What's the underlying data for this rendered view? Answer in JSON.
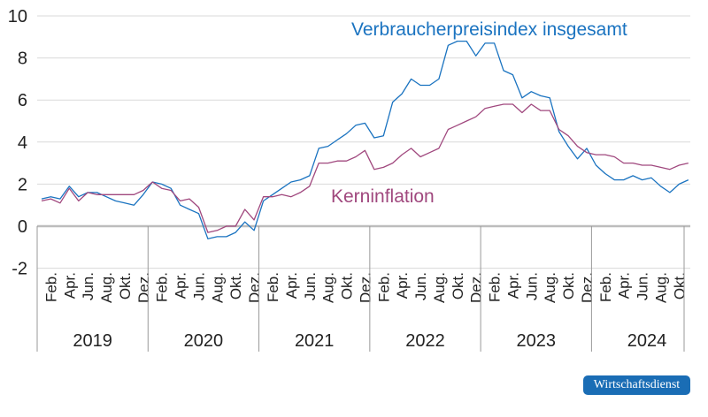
{
  "chart_data": {
    "type": "line",
    "ylim": [
      -2,
      10
    ],
    "yticks": [
      10,
      8,
      6,
      4,
      2,
      0,
      -2
    ],
    "grid": true,
    "years": [
      "2019",
      "2020",
      "2021",
      "2022",
      "2023",
      "2024"
    ],
    "month_labels": [
      "Feb.",
      "Apr.",
      "Jun.",
      "Aug.",
      "Okt.",
      "Dez."
    ],
    "x_start": "2019-01",
    "x_end": "2024-11",
    "series": [
      {
        "name": "Verbraucherpreisindex insgesamt",
        "color": "#1a73c0",
        "values": [
          1.3,
          1.4,
          1.3,
          1.9,
          1.4,
          1.6,
          1.6,
          1.4,
          1.2,
          1.1,
          1.0,
          1.5,
          2.1,
          2.0,
          1.8,
          1.0,
          0.8,
          0.6,
          -0.6,
          -0.5,
          -0.5,
          -0.3,
          0.2,
          -0.2,
          1.2,
          1.5,
          1.8,
          2.1,
          2.2,
          2.4,
          3.7,
          3.8,
          4.1,
          4.4,
          4.8,
          4.9,
          4.2,
          4.3,
          5.9,
          6.3,
          7.0,
          6.7,
          6.7,
          7.0,
          8.6,
          8.8,
          8.8,
          8.1,
          8.7,
          8.7,
          7.4,
          7.2,
          6.1,
          6.4,
          6.2,
          6.1,
          4.5,
          3.8,
          3.2,
          3.7,
          2.9,
          2.5,
          2.2,
          2.2,
          2.4,
          2.2,
          2.3,
          1.9,
          1.6,
          2.0,
          2.2
        ]
      },
      {
        "name": "Kerninflation",
        "color": "#a0487e",
        "values": [
          1.2,
          1.3,
          1.1,
          1.8,
          1.2,
          1.6,
          1.5,
          1.5,
          1.5,
          1.5,
          1.5,
          1.7,
          2.1,
          1.8,
          1.7,
          1.2,
          1.3,
          0.9,
          -0.3,
          -0.2,
          0.0,
          0.0,
          0.8,
          0.3,
          1.4,
          1.4,
          1.5,
          1.4,
          1.6,
          1.9,
          3.0,
          3.0,
          3.1,
          3.1,
          3.3,
          3.6,
          2.7,
          2.8,
          3.0,
          3.4,
          3.7,
          3.3,
          3.5,
          3.7,
          4.6,
          4.8,
          5.0,
          5.2,
          5.6,
          5.7,
          5.8,
          5.8,
          5.4,
          5.8,
          5.5,
          5.5,
          4.6,
          4.3,
          3.8,
          3.5,
          3.4,
          3.4,
          3.3,
          3.0,
          3.0,
          2.9,
          2.9,
          2.8,
          2.7,
          2.9,
          3.0
        ]
      }
    ]
  },
  "logo": {
    "text": "Wirtschaftsdienst"
  }
}
